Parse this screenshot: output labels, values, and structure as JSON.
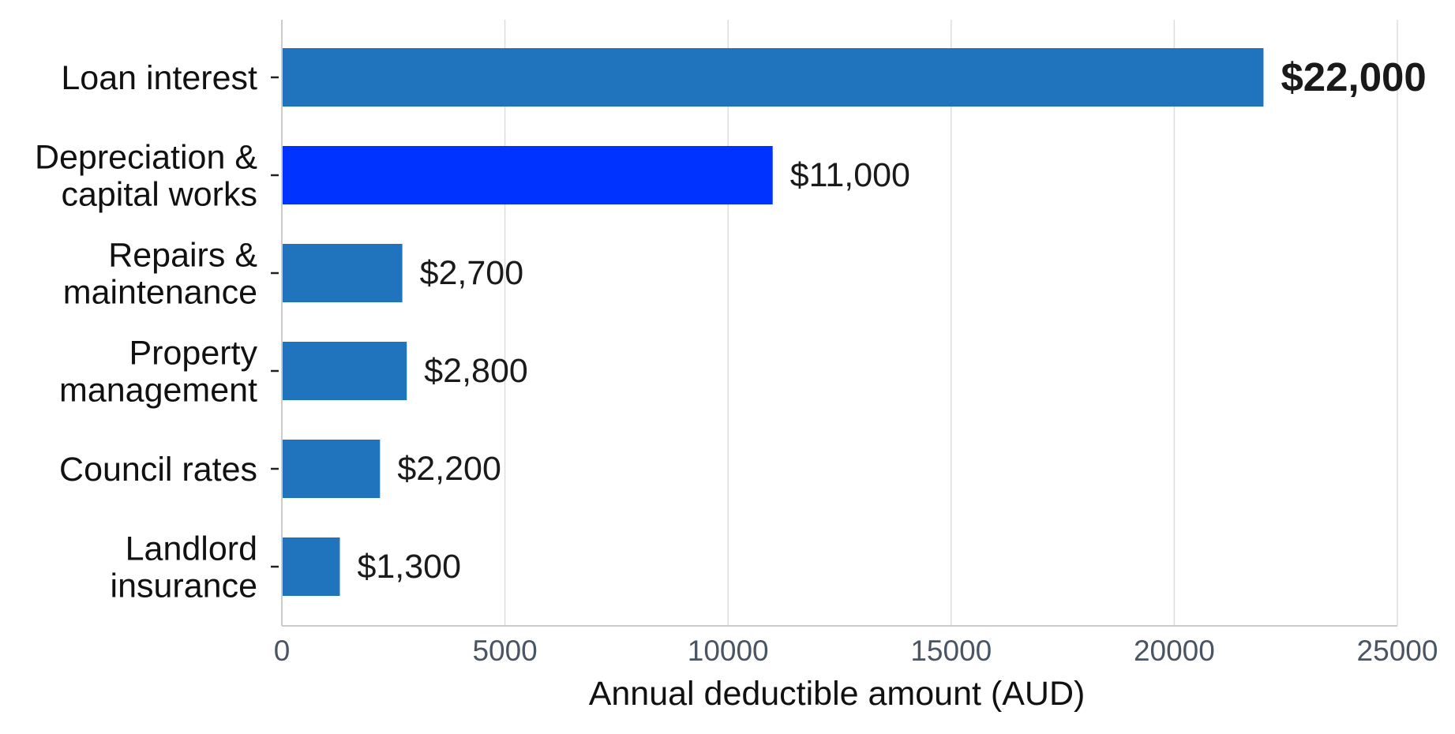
{
  "chart_data": {
    "type": "bar",
    "orientation": "horizontal",
    "categories": [
      [
        "Loan interest"
      ],
      [
        "Depreciation &",
        "capital works"
      ],
      [
        "Repairs &",
        "maintenance"
      ],
      [
        "Property",
        "management"
      ],
      [
        "Council rates"
      ],
      [
        "Landlord",
        "insurance"
      ]
    ],
    "values": [
      22000,
      11000,
      2700,
      2800,
      2200,
      1300
    ],
    "value_labels": [
      "$22,000",
      "$11,000",
      "$2,700",
      "$2,800",
      "$2,200",
      "$1,300"
    ],
    "highlight_bold_index": 0,
    "bar_colors": [
      "#1f74bd",
      "#0033ff",
      "#1f74bd",
      "#1f74bd",
      "#1f74bd",
      "#1f74bd"
    ],
    "xlabel": "Annual deductible amount (AUD)",
    "ylabel": "",
    "title": "",
    "xlim": [
      0,
      25000
    ],
    "xticks": [
      0,
      5000,
      10000,
      15000,
      20000,
      25000
    ],
    "xtick_labels": [
      "0",
      "5000",
      "10000",
      "15000",
      "20000",
      "25000"
    ],
    "grid": "vertical",
    "colors": {
      "grid": "#dddddd",
      "axis": "#cccccc",
      "tick_text": "#4a5563",
      "text": "#111111"
    }
  }
}
